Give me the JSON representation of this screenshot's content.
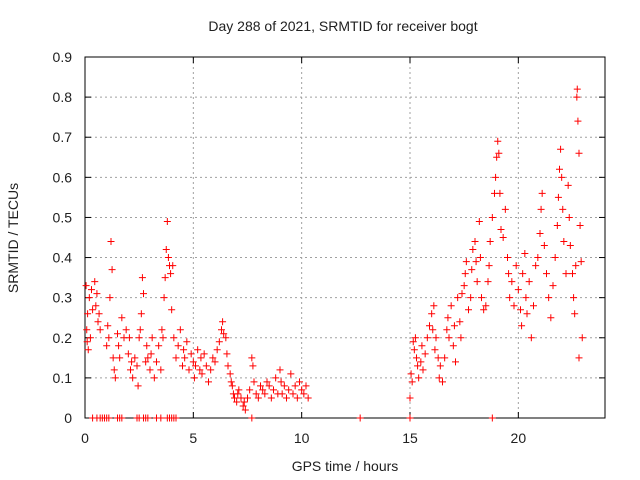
{
  "chart_data": {
    "type": "scatter",
    "title": "Day 288 of 2021, SRMTID for receiver bogt",
    "xlabel": "GPS time / hours",
    "ylabel": "SRMTID / TECUs",
    "xlim": [
      0,
      24
    ],
    "ylim": [
      0,
      0.9
    ],
    "xticks": [
      0,
      5,
      10,
      15,
      20
    ],
    "yticks": [
      0,
      0.1,
      0.2,
      0.3,
      0.4,
      0.5,
      0.6,
      0.7,
      0.8,
      0.9
    ],
    "grid": true,
    "marker": "+",
    "color": "#ff0000",
    "series": [
      {
        "name": "SRMTID",
        "points": [
          [
            0.05,
            0.33
          ],
          [
            0.08,
            0.22
          ],
          [
            0.1,
            0.19
          ],
          [
            0.12,
            0.26
          ],
          [
            0.15,
            0.17
          ],
          [
            0.2,
            0.3
          ],
          [
            0.25,
            0.2
          ],
          [
            0.3,
            0.32
          ],
          [
            0.35,
            0.27
          ],
          [
            0.45,
            0.34
          ],
          [
            0.5,
            0.28
          ],
          [
            0.55,
            0.31
          ],
          [
            0.6,
            0.24
          ],
          [
            0.65,
            0.26
          ],
          [
            0.7,
            0.22
          ],
          [
            1.0,
            0.18
          ],
          [
            1.05,
            0.23
          ],
          [
            1.1,
            0.2
          ],
          [
            1.15,
            0.3
          ],
          [
            1.2,
            0.44
          ],
          [
            1.25,
            0.37
          ],
          [
            1.3,
            0.15
          ],
          [
            1.35,
            0.12
          ],
          [
            1.4,
            0.1
          ],
          [
            1.5,
            0.21
          ],
          [
            1.55,
            0.18
          ],
          [
            1.6,
            0.15
          ],
          [
            1.7,
            0.25
          ],
          [
            1.8,
            0.2
          ],
          [
            1.9,
            0.22
          ],
          [
            2.0,
            0.16
          ],
          [
            2.05,
            0.2
          ],
          [
            2.1,
            0.12
          ],
          [
            2.15,
            0.14
          ],
          [
            2.2,
            0.1
          ],
          [
            2.3,
            0.15
          ],
          [
            2.4,
            0.13
          ],
          [
            2.45,
            0.08
          ],
          [
            2.5,
            0.2
          ],
          [
            2.55,
            0.22
          ],
          [
            2.6,
            0.26
          ],
          [
            2.65,
            0.35
          ],
          [
            2.7,
            0.31
          ],
          [
            2.8,
            0.14
          ],
          [
            2.85,
            0.18
          ],
          [
            2.9,
            0.15
          ],
          [
            3.0,
            0.12
          ],
          [
            3.05,
            0.16
          ],
          [
            3.1,
            0.2
          ],
          [
            3.2,
            0.1
          ],
          [
            3.3,
            0.14
          ],
          [
            3.4,
            0.18
          ],
          [
            3.5,
            0.12
          ],
          [
            3.55,
            0.22
          ],
          [
            3.6,
            0.2
          ],
          [
            3.65,
            0.3
          ],
          [
            3.7,
            0.35
          ],
          [
            3.75,
            0.42
          ],
          [
            3.8,
            0.49
          ],
          [
            3.85,
            0.4
          ],
          [
            3.9,
            0.38
          ],
          [
            3.95,
            0.36
          ],
          [
            4.0,
            0.27
          ],
          [
            4.05,
            0.38
          ],
          [
            4.1,
            0.2
          ],
          [
            4.2,
            0.15
          ],
          [
            4.3,
            0.18
          ],
          [
            4.4,
            0.22
          ],
          [
            4.5,
            0.13
          ],
          [
            4.55,
            0.17
          ],
          [
            4.6,
            0.15
          ],
          [
            4.7,
            0.19
          ],
          [
            4.8,
            0.12
          ],
          [
            4.9,
            0.16
          ],
          [
            5.0,
            0.14
          ],
          [
            5.05,
            0.1
          ],
          [
            5.1,
            0.13
          ],
          [
            5.2,
            0.17
          ],
          [
            5.3,
            0.12
          ],
          [
            5.35,
            0.15
          ],
          [
            5.4,
            0.11
          ],
          [
            5.5,
            0.16
          ],
          [
            5.6,
            0.13
          ],
          [
            5.7,
            0.09
          ],
          [
            5.8,
            0.12
          ],
          [
            5.9,
            0.15
          ],
          [
            6.0,
            0.14
          ],
          [
            6.1,
            0.17
          ],
          [
            6.2,
            0.19
          ],
          [
            6.3,
            0.22
          ],
          [
            6.35,
            0.24
          ],
          [
            6.4,
            0.21
          ],
          [
            6.5,
            0.2
          ],
          [
            6.55,
            0.16
          ],
          [
            6.6,
            0.13
          ],
          [
            6.7,
            0.11
          ],
          [
            6.75,
            0.09
          ],
          [
            6.8,
            0.08
          ],
          [
            6.85,
            0.06
          ],
          [
            6.9,
            0.05
          ],
          [
            7.0,
            0.04
          ],
          [
            7.05,
            0.06
          ],
          [
            7.1,
            0.07
          ],
          [
            7.2,
            0.05
          ],
          [
            7.3,
            0.03
          ],
          [
            7.35,
            0.04
          ],
          [
            7.4,
            0.02
          ],
          [
            7.5,
            0.05
          ],
          [
            7.6,
            0.07
          ],
          [
            7.7,
            0.15
          ],
          [
            7.75,
            0.13
          ],
          [
            7.8,
            0.09
          ],
          [
            7.9,
            0.06
          ],
          [
            8.0,
            0.05
          ],
          [
            8.1,
            0.08
          ],
          [
            8.2,
            0.07
          ],
          [
            8.3,
            0.06
          ],
          [
            8.4,
            0.09
          ],
          [
            8.5,
            0.08
          ],
          [
            8.6,
            0.05
          ],
          [
            8.7,
            0.07
          ],
          [
            8.8,
            0.1
          ],
          [
            8.9,
            0.06
          ],
          [
            9.0,
            0.12
          ],
          [
            9.05,
            0.09
          ],
          [
            9.1,
            0.06
          ],
          [
            9.2,
            0.08
          ],
          [
            9.3,
            0.05
          ],
          [
            9.4,
            0.07
          ],
          [
            9.5,
            0.11
          ],
          [
            9.6,
            0.06
          ],
          [
            9.7,
            0.08
          ],
          [
            9.8,
            0.05
          ],
          [
            9.9,
            0.09
          ],
          [
            10.0,
            0.07
          ],
          [
            10.1,
            0.06
          ],
          [
            10.2,
            0.08
          ],
          [
            10.3,
            0.05
          ],
          [
            15.0,
            0.05
          ],
          [
            15.05,
            0.11
          ],
          [
            15.1,
            0.09
          ],
          [
            15.15,
            0.19
          ],
          [
            15.2,
            0.17
          ],
          [
            15.25,
            0.2
          ],
          [
            15.3,
            0.15
          ],
          [
            15.35,
            0.13
          ],
          [
            15.4,
            0.1
          ],
          [
            15.5,
            0.14
          ],
          [
            15.55,
            0.18
          ],
          [
            15.6,
            0.12
          ],
          [
            15.7,
            0.16
          ],
          [
            15.8,
            0.2
          ],
          [
            15.9,
            0.23
          ],
          [
            16.0,
            0.26
          ],
          [
            16.05,
            0.22
          ],
          [
            16.1,
            0.28
          ],
          [
            16.15,
            0.17
          ],
          [
            16.2,
            0.2
          ],
          [
            16.3,
            0.15
          ],
          [
            16.35,
            0.1
          ],
          [
            16.4,
            0.13
          ],
          [
            16.5,
            0.09
          ],
          [
            16.6,
            0.15
          ],
          [
            16.7,
            0.22
          ],
          [
            16.75,
            0.25
          ],
          [
            16.8,
            0.2
          ],
          [
            16.9,
            0.28
          ],
          [
            17.0,
            0.18
          ],
          [
            17.05,
            0.23
          ],
          [
            17.1,
            0.14
          ],
          [
            17.2,
            0.3
          ],
          [
            17.3,
            0.24
          ],
          [
            17.35,
            0.2
          ],
          [
            17.4,
            0.31
          ],
          [
            17.5,
            0.33
          ],
          [
            17.55,
            0.36
          ],
          [
            17.6,
            0.39
          ],
          [
            17.7,
            0.27
          ],
          [
            17.8,
            0.3
          ],
          [
            17.85,
            0.37
          ],
          [
            17.9,
            0.42
          ],
          [
            18.0,
            0.44
          ],
          [
            18.05,
            0.39
          ],
          [
            18.1,
            0.34
          ],
          [
            18.2,
            0.49
          ],
          [
            18.25,
            0.4
          ],
          [
            18.3,
            0.3
          ],
          [
            18.4,
            0.27
          ],
          [
            18.5,
            0.28
          ],
          [
            18.6,
            0.34
          ],
          [
            18.65,
            0.38
          ],
          [
            18.7,
            0.44
          ],
          [
            18.8,
            0.5
          ],
          [
            18.9,
            0.56
          ],
          [
            18.95,
            0.6
          ],
          [
            19.0,
            0.65
          ],
          [
            19.05,
            0.69
          ],
          [
            19.1,
            0.66
          ],
          [
            19.15,
            0.56
          ],
          [
            19.2,
            0.47
          ],
          [
            19.3,
            0.45
          ],
          [
            19.4,
            0.52
          ],
          [
            19.5,
            0.4
          ],
          [
            19.55,
            0.36
          ],
          [
            19.6,
            0.3
          ],
          [
            19.7,
            0.34
          ],
          [
            19.8,
            0.28
          ],
          [
            19.9,
            0.38
          ],
          [
            20.0,
            0.32
          ],
          [
            20.1,
            0.27
          ],
          [
            20.15,
            0.23
          ],
          [
            20.2,
            0.36
          ],
          [
            20.3,
            0.41
          ],
          [
            20.35,
            0.3
          ],
          [
            20.4,
            0.26
          ],
          [
            20.5,
            0.34
          ],
          [
            20.6,
            0.2
          ],
          [
            20.7,
            0.28
          ],
          [
            20.8,
            0.38
          ],
          [
            20.9,
            0.4
          ],
          [
            21.0,
            0.46
          ],
          [
            21.05,
            0.52
          ],
          [
            21.1,
            0.56
          ],
          [
            21.2,
            0.43
          ],
          [
            21.3,
            0.36
          ],
          [
            21.4,
            0.3
          ],
          [
            21.5,
            0.25
          ],
          [
            21.6,
            0.33
          ],
          [
            21.7,
            0.4
          ],
          [
            21.8,
            0.48
          ],
          [
            21.85,
            0.55
          ],
          [
            21.9,
            0.62
          ],
          [
            21.95,
            0.67
          ],
          [
            22.0,
            0.6
          ],
          [
            22.05,
            0.52
          ],
          [
            22.1,
            0.44
          ],
          [
            22.2,
            0.36
          ],
          [
            22.3,
            0.58
          ],
          [
            22.35,
            0.5
          ],
          [
            22.4,
            0.43
          ],
          [
            22.5,
            0.36
          ],
          [
            22.55,
            0.3
          ],
          [
            22.6,
            0.26
          ],
          [
            22.65,
            0.38
          ],
          [
            22.7,
            0.8
          ],
          [
            22.72,
            0.82
          ],
          [
            22.75,
            0.74
          ],
          [
            22.8,
            0.66
          ],
          [
            22.85,
            0.48
          ],
          [
            22.9,
            0.39
          ],
          [
            22.95,
            0.2
          ],
          [
            22.8,
            0.15
          ]
        ],
        "zero_points": [
          0.35,
          0.55,
          0.7,
          0.8,
          0.9,
          1.0,
          1.1,
          1.5,
          1.6,
          1.7,
          2.4,
          2.5,
          2.7,
          2.8,
          2.9,
          3.3,
          3.5,
          3.8,
          3.9,
          4.0,
          4.1,
          4.2,
          7.7,
          12.7,
          15.0,
          18.8
        ]
      }
    ]
  }
}
